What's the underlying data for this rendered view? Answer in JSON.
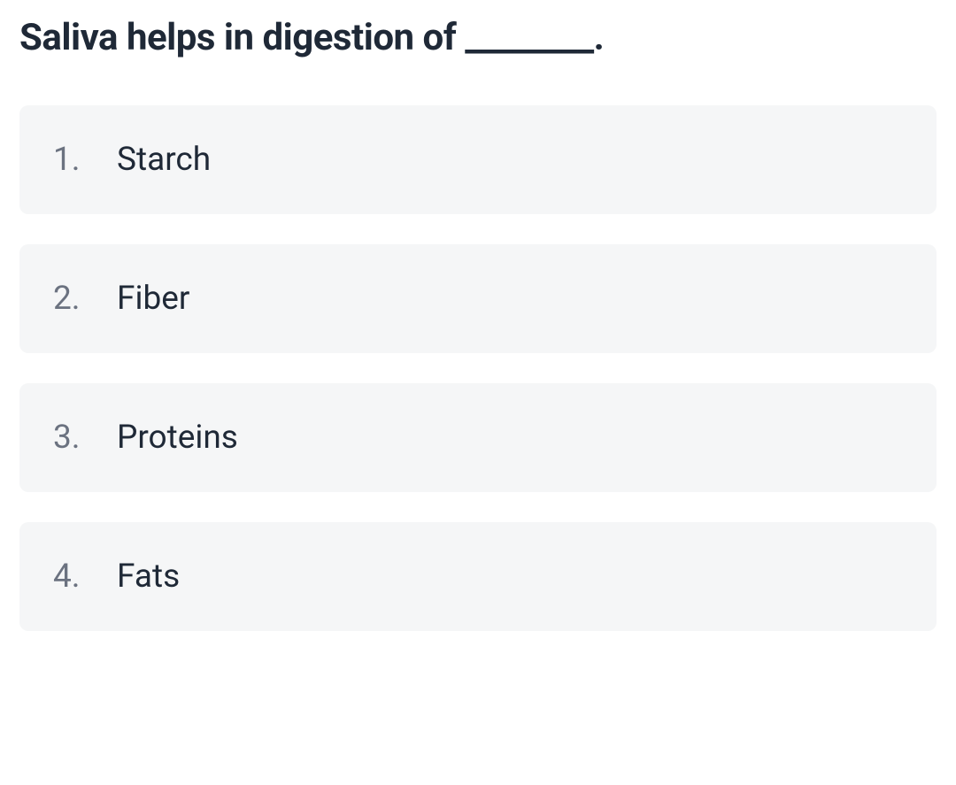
{
  "question": {
    "title": "Saliva helps in digestion of ________.",
    "title_fontsize": 42,
    "title_fontweight": 700,
    "title_color": "#1f2937"
  },
  "options": [
    {
      "number": "1.",
      "text": "Starch"
    },
    {
      "number": "2.",
      "text": "Fiber"
    },
    {
      "number": "3.",
      "text": "Proteins"
    },
    {
      "number": "4.",
      "text": "Fats"
    }
  ],
  "styling": {
    "background_color": "#ffffff",
    "option_background_color": "#f5f6f7",
    "option_border_radius": 10,
    "option_number_color": "#6b7280",
    "option_text_color": "#1f2937",
    "option_fontsize": 37,
    "option_gap": 34
  }
}
